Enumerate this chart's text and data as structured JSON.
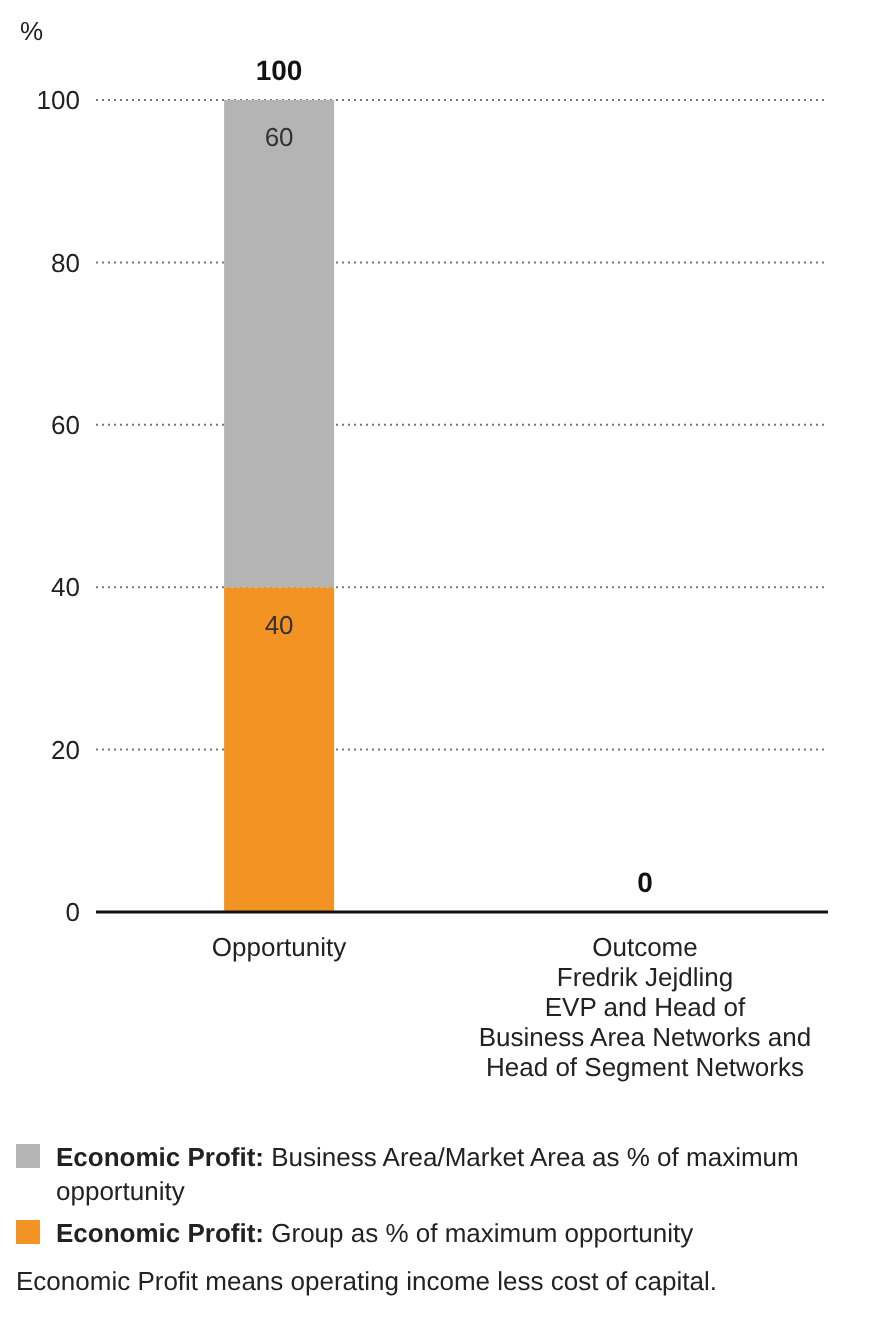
{
  "chart_data": {
    "type": "bar",
    "stacked": true,
    "ylabel": "%",
    "categories": [
      "Opportunity",
      "Outcome\nFredrik Jejdling\nEVP and Head of\nBusiness Area Networks and\nHead of Segment Networks"
    ],
    "series": [
      {
        "name": "Economic Profit: Group as % of maximum opportunity",
        "color": "#f39323",
        "values": [
          40,
          0
        ],
        "value_labels": [
          "40",
          null
        ]
      },
      {
        "name": "Economic Profit: Business Area/Market Area as % of maximum opportunity",
        "color": "#b4b4b4",
        "values": [
          60,
          0
        ],
        "value_labels": [
          "60",
          null
        ]
      }
    ],
    "totals": [
      "100",
      "0"
    ],
    "ylim": [
      0,
      100
    ],
    "yticks": [
      0,
      20,
      40,
      60,
      80,
      100
    ],
    "grid": "y",
    "legend": "bottom",
    "annotations": [
      "Economic Profit means operating income less cost of capital."
    ]
  }
}
